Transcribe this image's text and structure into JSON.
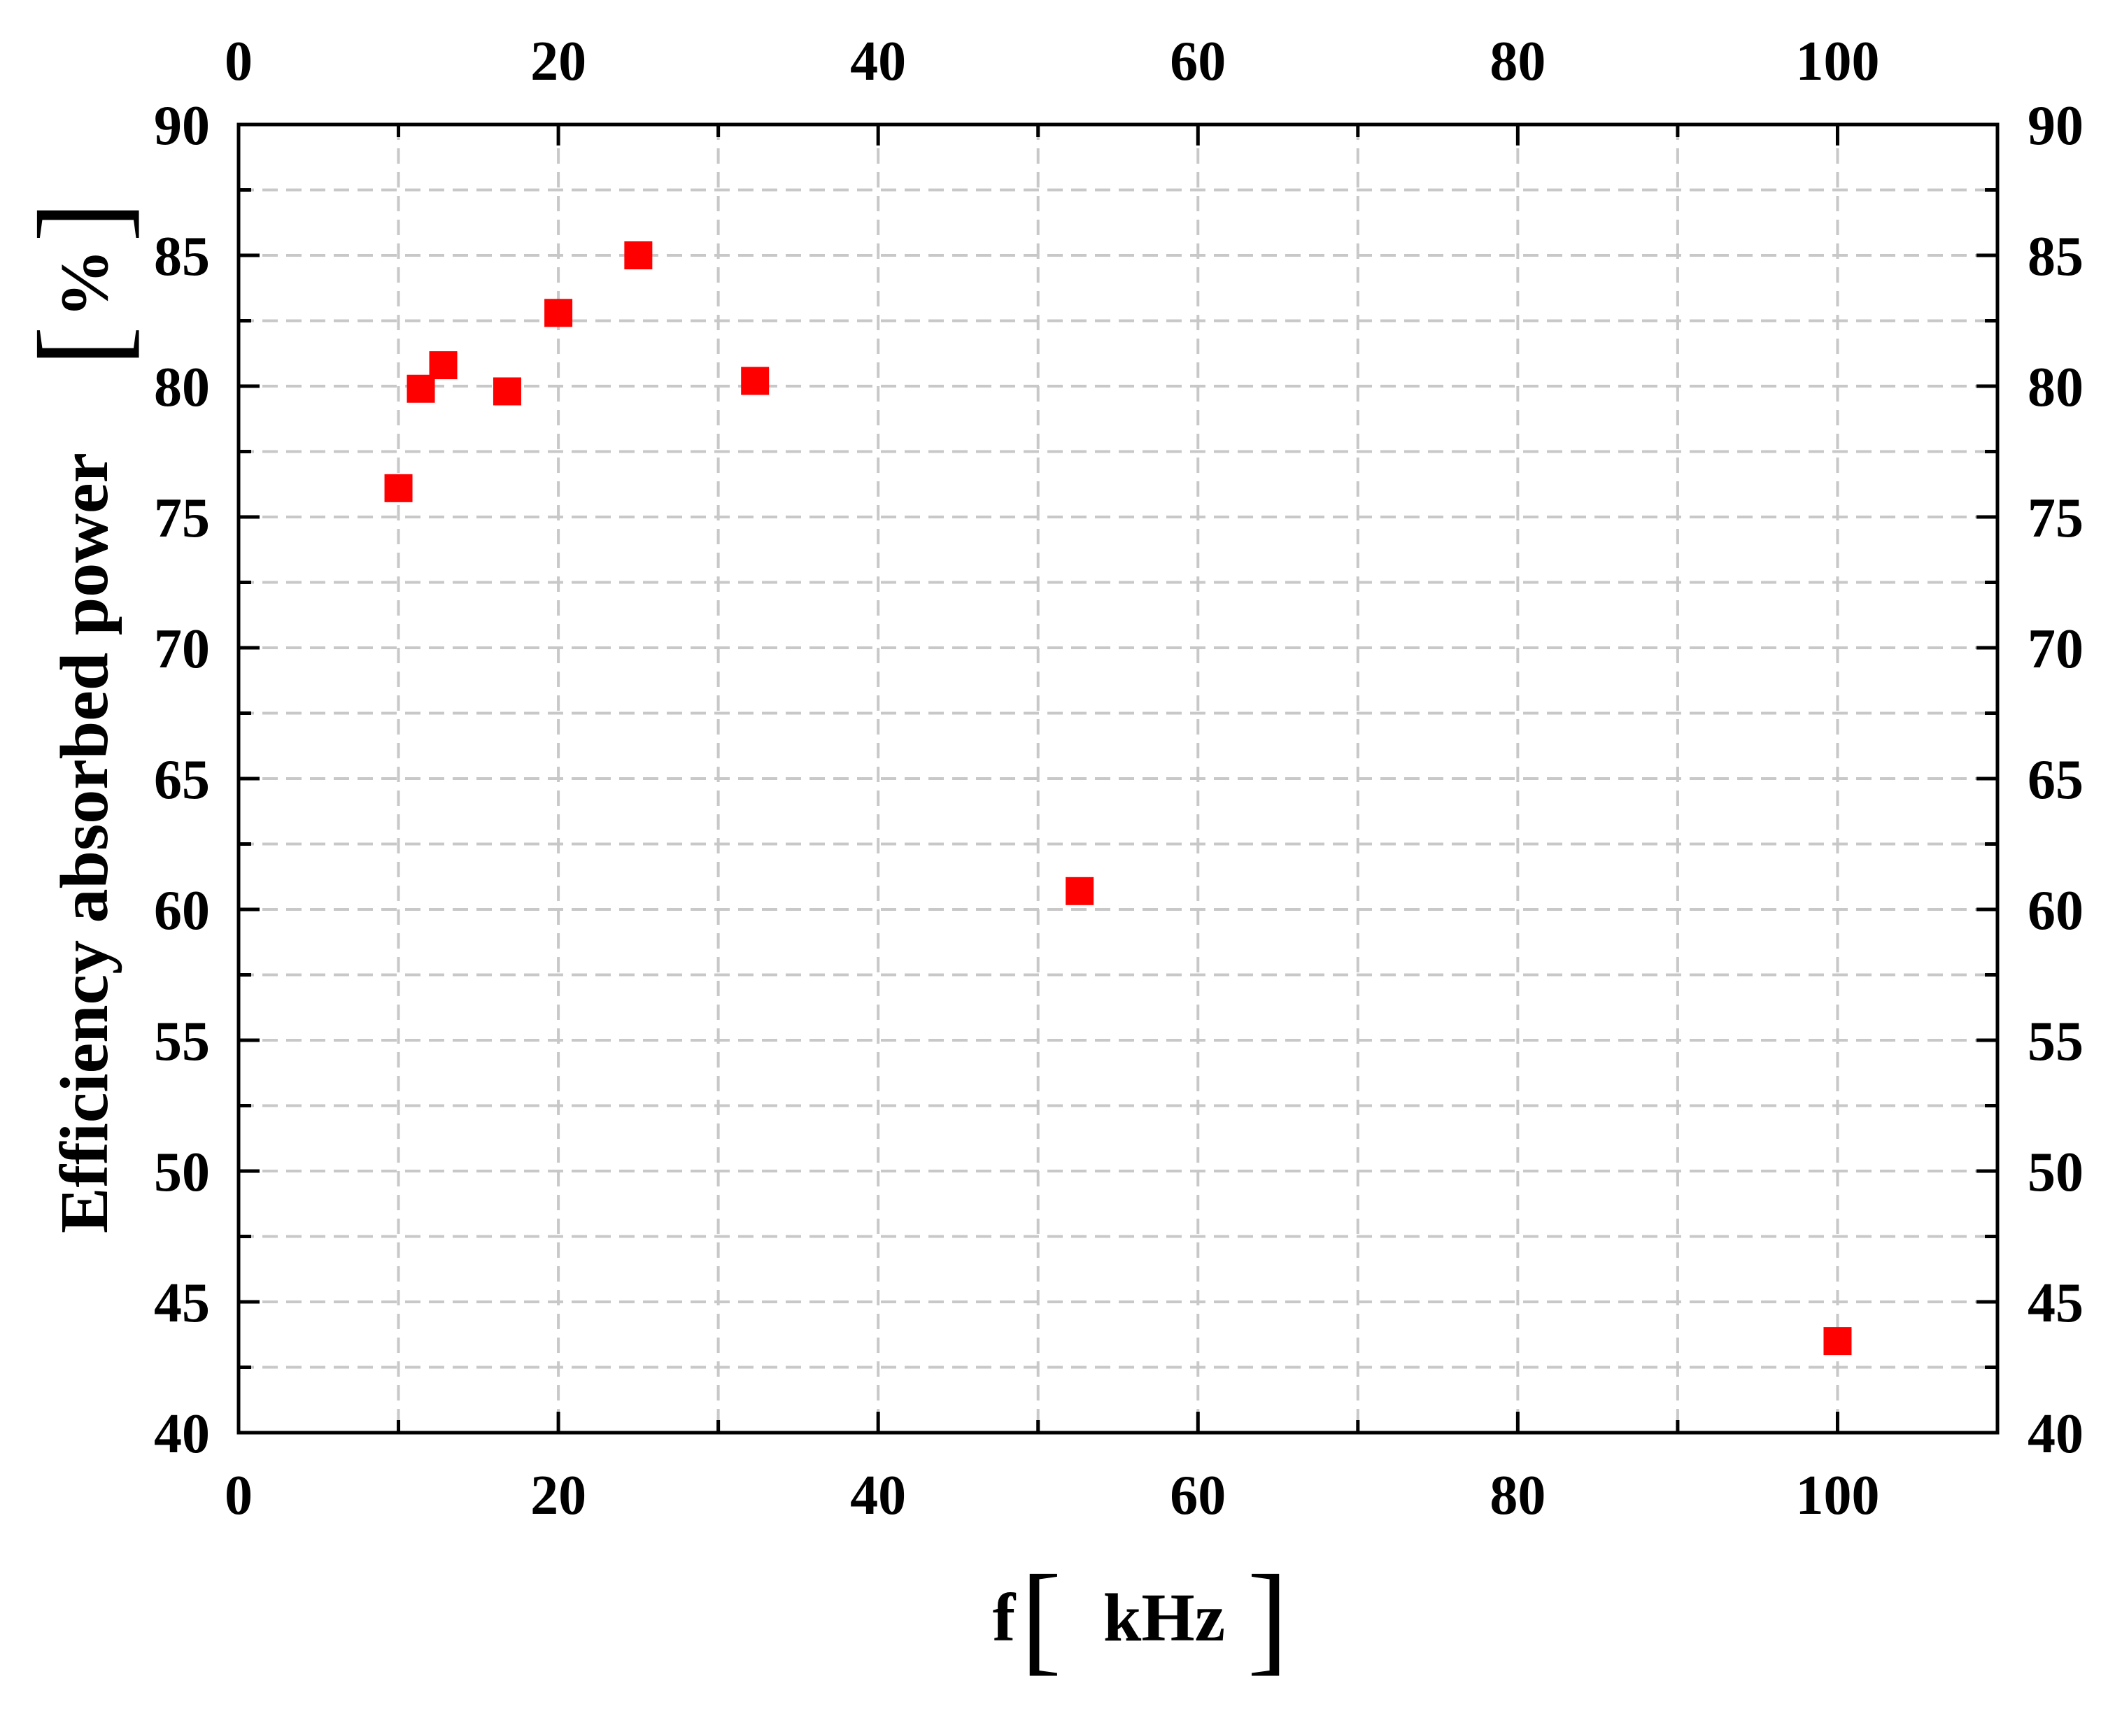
{
  "chart_data": {
    "type": "scatter",
    "xlabel_main": "f",
    "xlabel_unit": "kHz",
    "ylabel_main": "Efficiency absorbed power",
    "ylabel_unit": "%",
    "xlim": [
      0,
      110
    ],
    "ylim": [
      40,
      90
    ],
    "x_ticks": [
      "0",
      "20",
      "40",
      "60",
      "80",
      "100"
    ],
    "x_tick_values": [
      0,
      20,
      40,
      60,
      80,
      100
    ],
    "y_ticks": [
      "40",
      "45",
      "50",
      "55",
      "60",
      "65",
      "70",
      "75",
      "80",
      "85",
      "90"
    ],
    "y_tick_values": [
      40,
      45,
      50,
      55,
      60,
      65,
      70,
      75,
      80,
      85,
      90
    ],
    "grid": true,
    "marker": "square",
    "marker_color": "#ff0000",
    "points": [
      {
        "x": 10,
        "y": 76.1
      },
      {
        "x": 11.4,
        "y": 79.9
      },
      {
        "x": 12.8,
        "y": 80.8
      },
      {
        "x": 16.8,
        "y": 79.8
      },
      {
        "x": 20,
        "y": 82.8
      },
      {
        "x": 25,
        "y": 85.0
      },
      {
        "x": 32.3,
        "y": 80.2
      },
      {
        "x": 52.6,
        "y": 60.7
      },
      {
        "x": 100,
        "y": 43.5
      }
    ]
  }
}
